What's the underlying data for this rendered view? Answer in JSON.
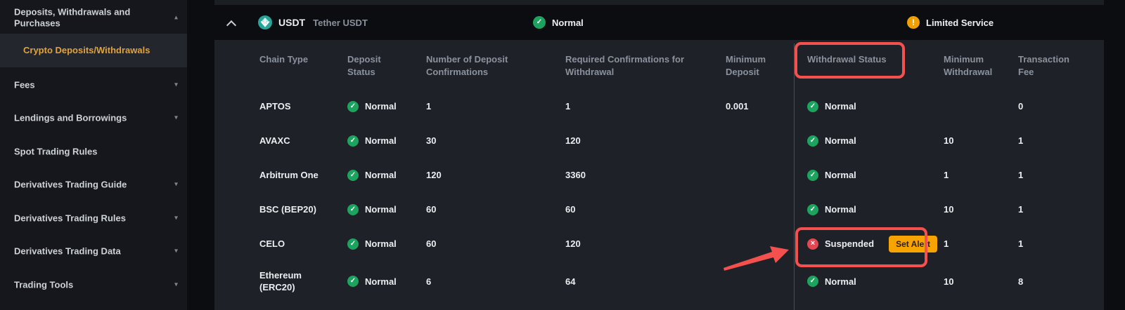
{
  "sidebar": {
    "items": [
      {
        "label": "Deposits, Withdrawals and Purchases",
        "chevron": "up",
        "active": false,
        "sub": false
      },
      {
        "label": "Crypto Deposits/Withdrawals",
        "chevron": "",
        "active": true,
        "sub": true
      },
      {
        "label": "Fees",
        "chevron": "down",
        "active": false,
        "sub": false
      },
      {
        "label": "Lendings and Borrowings",
        "chevron": "down",
        "active": false,
        "sub": false
      },
      {
        "label": "Spot Trading Rules",
        "chevron": "",
        "active": false,
        "sub": false
      },
      {
        "label": "Derivatives Trading Guide",
        "chevron": "down",
        "active": false,
        "sub": false
      },
      {
        "label": "Derivatives Trading Rules",
        "chevron": "down",
        "active": false,
        "sub": false
      },
      {
        "label": "Derivatives Trading Data",
        "chevron": "down",
        "active": false,
        "sub": false
      },
      {
        "label": "Trading Tools",
        "chevron": "down",
        "active": false,
        "sub": false
      }
    ]
  },
  "coin_header": {
    "symbol": "USDT",
    "name": "Tether USDT",
    "deposit_overall_status": "Normal",
    "withdrawal_overall_status": "Limited Service"
  },
  "table": {
    "columns": [
      "Chain Type",
      "Deposit Status",
      "Number of Deposit Confirmations",
      "Required Confirmations for Withdrawal",
      "Minimum Deposit",
      "Withdrawal Status",
      "Minimum Withdrawal",
      "Transaction Fee"
    ],
    "set_alert_label": "Set Alert",
    "rows": [
      {
        "chain": "APTOS",
        "deposit_status": "Normal",
        "deposit_confirmations": "1",
        "withdrawal_confirmations": "1",
        "min_deposit": "0.001",
        "withdrawal_status": "Normal",
        "set_alert": false,
        "min_withdrawal": "",
        "fee": "0"
      },
      {
        "chain": "AVAXC",
        "deposit_status": "Normal",
        "deposit_confirmations": "30",
        "withdrawal_confirmations": "120",
        "min_deposit": "",
        "withdrawal_status": "Normal",
        "set_alert": false,
        "min_withdrawal": "10",
        "fee": "1"
      },
      {
        "chain": "Arbitrum One",
        "deposit_status": "Normal",
        "deposit_confirmations": "120",
        "withdrawal_confirmations": "3360",
        "min_deposit": "",
        "withdrawal_status": "Normal",
        "set_alert": false,
        "min_withdrawal": "1",
        "fee": "1"
      },
      {
        "chain": "BSC (BEP20)",
        "deposit_status": "Normal",
        "deposit_confirmations": "60",
        "withdrawal_confirmations": "60",
        "min_deposit": "",
        "withdrawal_status": "Normal",
        "set_alert": false,
        "min_withdrawal": "10",
        "fee": "1"
      },
      {
        "chain": "CELO",
        "deposit_status": "Normal",
        "deposit_confirmations": "60",
        "withdrawal_confirmations": "120",
        "min_deposit": "",
        "withdrawal_status": "Suspended",
        "set_alert": true,
        "min_withdrawal": "1",
        "fee": "1"
      },
      {
        "chain": "Ethereum (ERC20)",
        "deposit_status": "Normal",
        "deposit_confirmations": "6",
        "withdrawal_confirmations": "64",
        "min_deposit": "",
        "withdrawal_status": "Normal",
        "set_alert": false,
        "min_withdrawal": "10",
        "fee": "8"
      }
    ]
  },
  "annotations": {
    "highlighted_header": "Withdrawal Status",
    "highlighted_row": "CELO",
    "color": "#F4504E"
  },
  "colors": {
    "status_green": "#1CA45F",
    "status_red": "#E5464F",
    "warning_amber": "#F0A000",
    "set_alert_button": "#F8A400",
    "active_nav_orange": "#E2A33C",
    "usdt_teal": "#26A69A",
    "annotation_red": "#F4504E"
  }
}
